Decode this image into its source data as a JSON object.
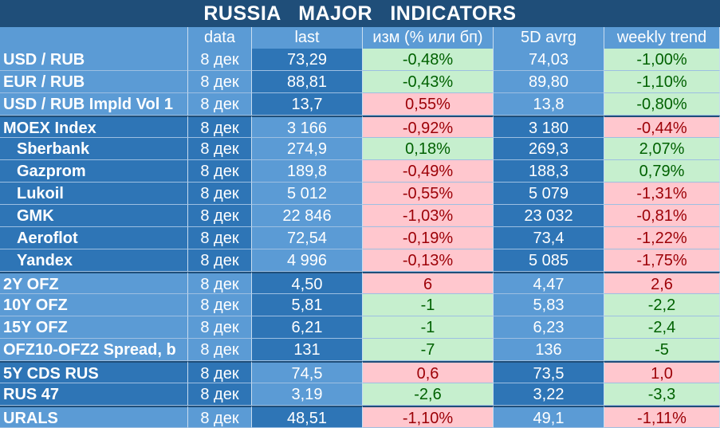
{
  "title": "RUSSIA   MAJOR   INDICATORS",
  "headers": [
    "",
    "data",
    "last",
    "изм (% или бп)",
    "5D avrg",
    "weekly trend"
  ],
  "colors": {
    "title_bg": "#1f4e79",
    "light_blue": "#5b9bd5",
    "dark_blue": "#2e75b6",
    "positive_bg": "#c6efce",
    "positive_text": "#006100",
    "negative_bg": "#ffc7ce",
    "negative_text": "#9c0006"
  },
  "rows": [
    {
      "name": "USD / RUB",
      "date": "8 дек",
      "last": "73,29",
      "chg": "-0,48%",
      "chg_status": "pos",
      "avg": "74,03",
      "weekly": "-1,00%",
      "weekly_status": "pos",
      "sub": false
    },
    {
      "name": "EUR / RUB",
      "date": "8 дек",
      "last": "88,81",
      "chg": "-0,43%",
      "chg_status": "pos",
      "avg": "89,80",
      "weekly": "-1,10%",
      "weekly_status": "pos",
      "sub": false
    },
    {
      "name": "USD / RUB Impld Vol 1",
      "date": "8 дек",
      "last": "13,7",
      "chg": "0,55%",
      "chg_status": "neg",
      "avg": "13,8",
      "weekly": "-0,80%",
      "weekly_status": "pos",
      "sub": false
    },
    {
      "name": "MOEX Index",
      "date": "8 дек",
      "last": "3 166",
      "chg": "-0,92%",
      "chg_status": "neg",
      "avg": "3 180",
      "weekly": "-0,44%",
      "weekly_status": "neg",
      "sub": false
    },
    {
      "name": "Sberbank",
      "date": "8 дек",
      "last": "274,9",
      "chg": "0,18%",
      "chg_status": "pos",
      "avg": "269,3",
      "weekly": "2,07%",
      "weekly_status": "pos",
      "sub": true
    },
    {
      "name": "Gazprom",
      "date": "8 дек",
      "last": "189,8",
      "chg": "-0,49%",
      "chg_status": "neg",
      "avg": "188,3",
      "weekly": "0,79%",
      "weekly_status": "pos",
      "sub": true
    },
    {
      "name": "Lukoil",
      "date": "8 дек",
      "last": "5 012",
      "chg": "-0,55%",
      "chg_status": "neg",
      "avg": "5 079",
      "weekly": "-1,31%",
      "weekly_status": "neg",
      "sub": true
    },
    {
      "name": "GMK",
      "date": "8 дек",
      "last": "22 846",
      "chg": "-1,03%",
      "chg_status": "neg",
      "avg": "23 032",
      "weekly": "-0,81%",
      "weekly_status": "neg",
      "sub": true
    },
    {
      "name": "Aeroflot",
      "date": "8 дек",
      "last": "72,54",
      "chg": "-0,19%",
      "chg_status": "neg",
      "avg": "73,4",
      "weekly": "-1,22%",
      "weekly_status": "neg",
      "sub": true
    },
    {
      "name": "Yandex",
      "date": "8 дек",
      "last": "4 996",
      "chg": "-0,13%",
      "chg_status": "neg",
      "avg": "5 085",
      "weekly": "-1,75%",
      "weekly_status": "neg",
      "sub": true
    },
    {
      "name": "2Y OFZ",
      "date": "8 дек",
      "last": "4,50",
      "chg": "6",
      "chg_status": "neg",
      "avg": "4,47",
      "weekly": "2,6",
      "weekly_status": "neg",
      "sub": false
    },
    {
      "name": "10Y OFZ",
      "date": "8 дек",
      "last": "5,81",
      "chg": "-1",
      "chg_status": "pos",
      "avg": "5,83",
      "weekly": "-2,2",
      "weekly_status": "pos",
      "sub": false
    },
    {
      "name": "15Y OFZ",
      "date": "8 дек",
      "last": "6,21",
      "chg": "-1",
      "chg_status": "pos",
      "avg": "6,23",
      "weekly": "-2,4",
      "weekly_status": "pos",
      "sub": false
    },
    {
      "name": "OFZ10-OFZ2 Spread, b",
      "date": "8 дек",
      "last": "131",
      "chg": "-7",
      "chg_status": "pos",
      "avg": "136",
      "weekly": "-5",
      "weekly_status": "pos",
      "sub": false
    },
    {
      "name": "5Y CDS RUS",
      "date": "8 дек",
      "last": "74,5",
      "chg": "0,6",
      "chg_status": "neg",
      "avg": "73,5",
      "weekly": "1,0",
      "weekly_status": "neg",
      "sub": false
    },
    {
      "name": "RUS 47",
      "date": "8 дек",
      "last": "3,19",
      "chg": "-2,6",
      "chg_status": "pos",
      "avg": "3,22",
      "weekly": "-3,3",
      "weekly_status": "pos",
      "sub": false
    },
    {
      "name": "URALS",
      "date": "8 дек",
      "last": "48,51",
      "chg": "-1,10%",
      "chg_status": "neg",
      "avg": "49,1",
      "weekly": "-1,11%",
      "weekly_status": "neg",
      "sub": false
    }
  ]
}
